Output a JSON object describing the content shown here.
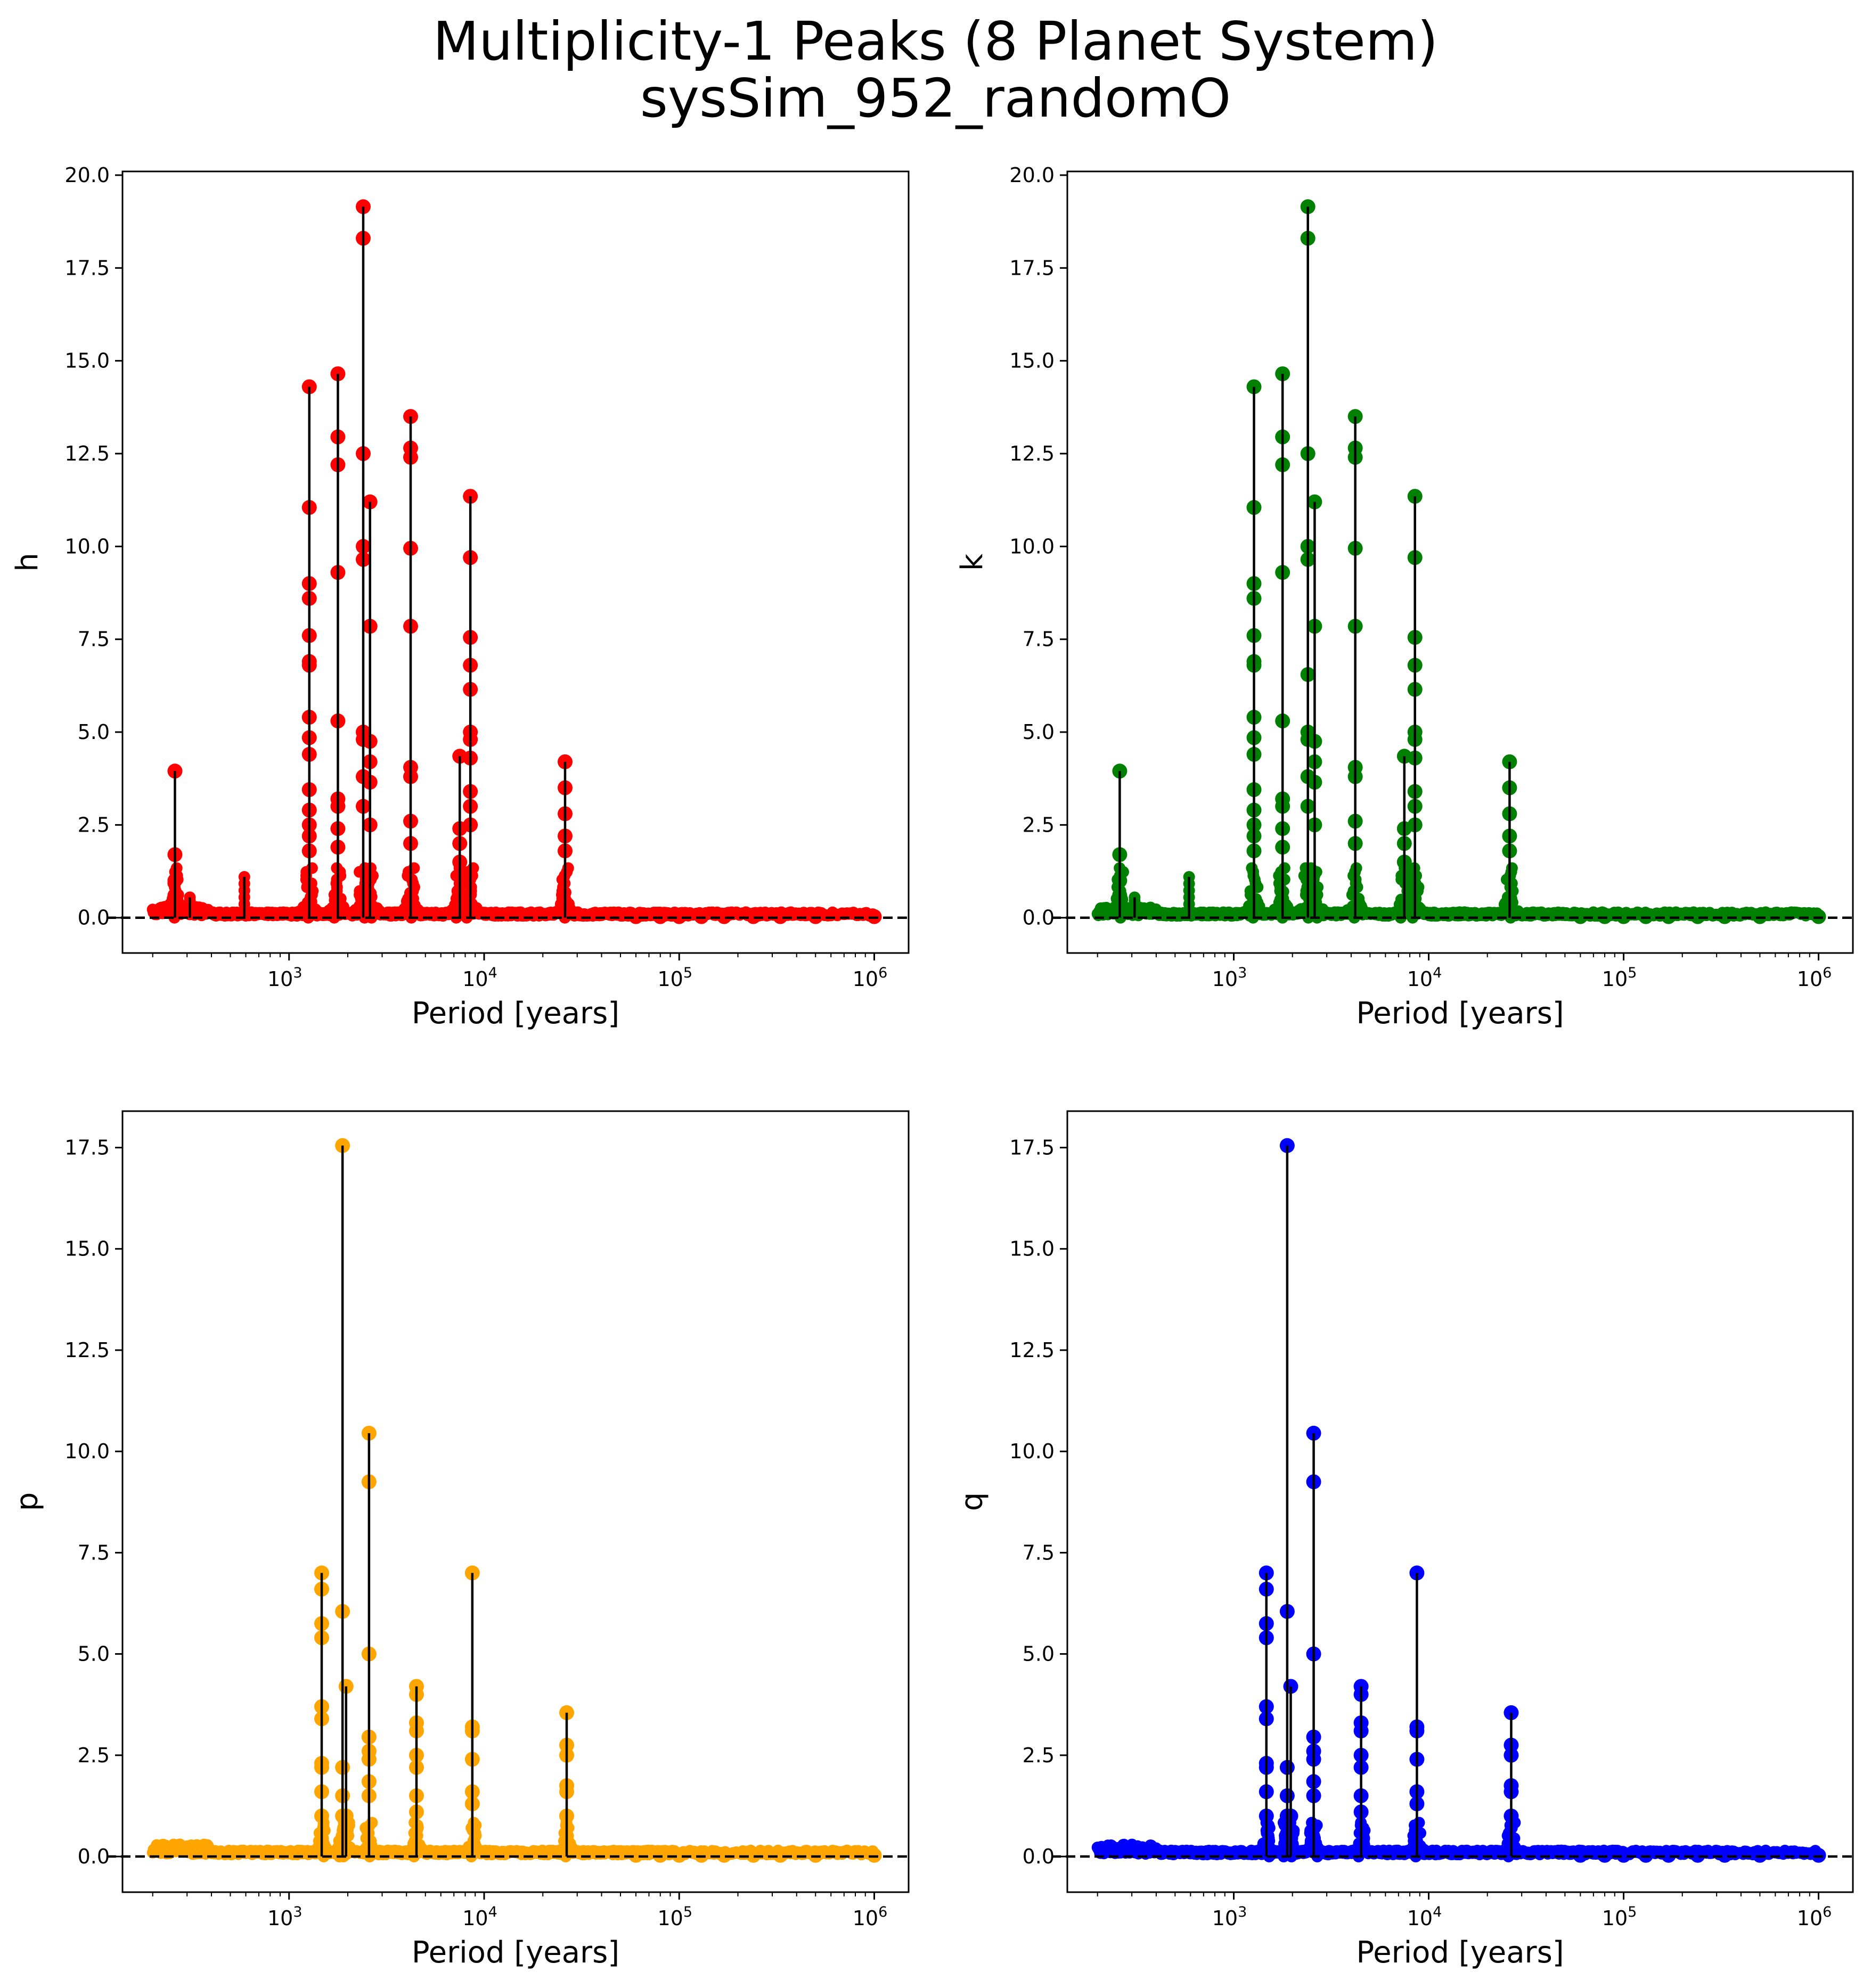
{
  "figure": {
    "title_line1": "Multiplicity-1 Peaks (8 Planet System)",
    "title_line2": "sysSim_952_randomO"
  },
  "chart_data": [
    {
      "type": "scatter",
      "name": "panel-h",
      "xlabel": "Period [years]",
      "ylabel": "h",
      "xscale": "log",
      "xlim": [
        140,
        1500000
      ],
      "ylim": [
        -0.95,
        20.1
      ],
      "yticks": [
        "0.0",
        "2.5",
        "5.0",
        "7.5",
        "10.0",
        "12.5",
        "15.0",
        "17.5",
        "20.0"
      ],
      "xticks": [
        {
          "base": "10",
          "exp": "3"
        },
        {
          "base": "10",
          "exp": "4"
        },
        {
          "base": "10",
          "exp": "5"
        },
        {
          "base": "10",
          "exp": "6"
        }
      ],
      "marker_color": "#ff0000",
      "peaks": [
        {
          "x": 260,
          "y": 3.95,
          "dots": [
            1.7,
            1.0,
            0.6
          ]
        },
        {
          "x": 1270,
          "y": 14.3,
          "dots": [
            11.05,
            9.0,
            8.6,
            7.6,
            6.9,
            6.8,
            5.4,
            4.85,
            4.4,
            3.45,
            2.9,
            2.5,
            2.2,
            1.8
          ]
        },
        {
          "x": 1780,
          "y": 14.65,
          "dots": [
            12.95,
            12.2,
            9.3,
            5.3,
            3.2,
            3.0,
            2.4,
            1.9
          ]
        },
        {
          "x": 2400,
          "y": 19.15,
          "dots": [
            18.3,
            12.5,
            10.0,
            9.65,
            5.0,
            4.8,
            3.8,
            3.0
          ]
        },
        {
          "x": 2600,
          "y": 11.2,
          "dots": [
            7.85,
            4.75,
            4.2,
            3.65,
            2.5
          ]
        },
        {
          "x": 4200,
          "y": 13.5,
          "dots": [
            12.65,
            12.4,
            9.95,
            7.85,
            4.05,
            3.8,
            2.6,
            2.0
          ]
        },
        {
          "x": 7500,
          "y": 4.35,
          "dots": [
            2.4,
            2.0,
            1.5
          ]
        },
        {
          "x": 8500,
          "y": 11.35,
          "dots": [
            9.7,
            7.55,
            6.8,
            6.15,
            5.0,
            4.8,
            4.3,
            3.4,
            3.0,
            2.5
          ]
        },
        {
          "x": 26000,
          "y": 4.2,
          "dots": [
            3.5,
            2.8,
            2.2,
            1.8
          ]
        }
      ],
      "small_peaks": [
        {
          "x": 310,
          "y": 0.55
        },
        {
          "x": 590,
          "y": 1.1
        }
      ],
      "baseline_cutoff": 0.8
    },
    {
      "type": "scatter",
      "name": "panel-k",
      "xlabel": "Period [years]",
      "ylabel": "k",
      "xscale": "log",
      "xlim": [
        140,
        1500000
      ],
      "ylim": [
        -0.95,
        20.1
      ],
      "yticks": [
        "0.0",
        "2.5",
        "5.0",
        "7.5",
        "10.0",
        "12.5",
        "15.0",
        "17.5",
        "20.0"
      ],
      "xticks": [
        {
          "base": "10",
          "exp": "3"
        },
        {
          "base": "10",
          "exp": "4"
        },
        {
          "base": "10",
          "exp": "5"
        },
        {
          "base": "10",
          "exp": "6"
        }
      ],
      "marker_color": "#008000",
      "peaks": [
        {
          "x": 260,
          "y": 3.95,
          "dots": [
            1.7,
            1.0,
            0.6
          ]
        },
        {
          "x": 1270,
          "y": 14.3,
          "dots": [
            11.05,
            9.0,
            8.6,
            7.6,
            6.9,
            6.8,
            5.4,
            4.85,
            4.4,
            3.45,
            2.9,
            2.5,
            2.2,
            1.8
          ]
        },
        {
          "x": 1780,
          "y": 14.65,
          "dots": [
            12.95,
            12.2,
            9.3,
            5.3,
            3.2,
            3.0,
            2.4,
            1.9
          ]
        },
        {
          "x": 2400,
          "y": 19.15,
          "dots": [
            18.3,
            12.5,
            10.0,
            9.65,
            6.55,
            5.0,
            4.8,
            3.8,
            3.0
          ]
        },
        {
          "x": 2600,
          "y": 11.2,
          "dots": [
            7.85,
            4.75,
            4.2,
            3.65,
            2.5
          ]
        },
        {
          "x": 4200,
          "y": 13.5,
          "dots": [
            12.65,
            12.4,
            9.95,
            7.85,
            4.05,
            3.8,
            2.6,
            2.0
          ]
        },
        {
          "x": 7500,
          "y": 4.35,
          "dots": [
            2.4,
            2.0,
            1.5
          ]
        },
        {
          "x": 8500,
          "y": 11.35,
          "dots": [
            9.7,
            7.55,
            6.8,
            6.15,
            5.0,
            4.8,
            4.3,
            3.4,
            3.0,
            2.5
          ]
        },
        {
          "x": 26000,
          "y": 4.2,
          "dots": [
            3.5,
            2.8,
            2.2,
            1.8
          ]
        }
      ],
      "small_peaks": [
        {
          "x": 310,
          "y": 0.55
        },
        {
          "x": 590,
          "y": 1.1
        }
      ],
      "baseline_cutoff": 0.8
    },
    {
      "type": "scatter",
      "name": "panel-p",
      "xlabel": "Period [years]",
      "ylabel": "p",
      "xscale": "log",
      "xlim": [
        140,
        1500000
      ],
      "ylim": [
        -0.88,
        18.4
      ],
      "yticks": [
        "0.0",
        "2.5",
        "5.0",
        "7.5",
        "10.0",
        "12.5",
        "15.0",
        "17.5"
      ],
      "xticks": [
        {
          "base": "10",
          "exp": "3"
        },
        {
          "base": "10",
          "exp": "4"
        },
        {
          "base": "10",
          "exp": "5"
        },
        {
          "base": "10",
          "exp": "6"
        }
      ],
      "marker_color": "#ffa500",
      "peaks": [
        {
          "x": 1470,
          "y": 7.0,
          "dots": [
            6.6,
            5.75,
            5.4,
            3.7,
            3.4,
            2.3,
            2.2,
            1.6,
            1.0
          ]
        },
        {
          "x": 1880,
          "y": 17.55,
          "dots": [
            6.05,
            2.2,
            1.5,
            1.0
          ]
        },
        {
          "x": 1960,
          "y": 4.2,
          "dots": [
            1.0
          ]
        },
        {
          "x": 2570,
          "y": 10.45,
          "dots": [
            9.25,
            5.0,
            2.95,
            2.6,
            2.4,
            1.85,
            1.5
          ]
        },
        {
          "x": 4500,
          "y": 4.2,
          "dots": [
            4.0,
            3.3,
            3.1,
            2.5,
            2.2,
            1.5,
            1.1
          ]
        },
        {
          "x": 8700,
          "y": 7.0,
          "dots": [
            3.2,
            3.1,
            2.4,
            1.6,
            1.3
          ]
        },
        {
          "x": 26500,
          "y": 3.55,
          "dots": [
            2.75,
            2.5,
            1.75,
            1.6,
            1.0
          ]
        }
      ],
      "small_peaks": [],
      "baseline_cutoff": 0.5
    },
    {
      "type": "scatter",
      "name": "panel-q",
      "xlabel": "Period [years]",
      "ylabel": "q",
      "xscale": "log",
      "xlim": [
        140,
        1500000
      ],
      "ylim": [
        -0.88,
        18.4
      ],
      "yticks": [
        "0.0",
        "2.5",
        "5.0",
        "7.5",
        "10.0",
        "12.5",
        "15.0",
        "17.5"
      ],
      "xticks": [
        {
          "base": "10",
          "exp": "3"
        },
        {
          "base": "10",
          "exp": "4"
        },
        {
          "base": "10",
          "exp": "5"
        },
        {
          "base": "10",
          "exp": "6"
        }
      ],
      "marker_color": "#0000ff",
      "peaks": [
        {
          "x": 1470,
          "y": 7.0,
          "dots": [
            6.6,
            5.75,
            5.4,
            3.7,
            3.4,
            2.3,
            2.2,
            1.6,
            1.0
          ]
        },
        {
          "x": 1880,
          "y": 17.55,
          "dots": [
            6.05,
            2.2,
            1.5,
            1.0
          ]
        },
        {
          "x": 1960,
          "y": 4.2,
          "dots": [
            1.0
          ]
        },
        {
          "x": 2570,
          "y": 10.45,
          "dots": [
            9.25,
            5.0,
            2.95,
            2.6,
            2.4,
            1.85,
            1.5
          ]
        },
        {
          "x": 4500,
          "y": 4.2,
          "dots": [
            4.0,
            3.3,
            3.1,
            2.5,
            2.2,
            1.5,
            1.1
          ]
        },
        {
          "x": 8700,
          "y": 7.0,
          "dots": [
            3.2,
            3.1,
            2.4,
            1.6,
            1.3
          ]
        },
        {
          "x": 26500,
          "y": 3.55,
          "dots": [
            2.75,
            2.5,
            1.75,
            1.6,
            1.0
          ]
        }
      ],
      "small_peaks": [],
      "baseline_cutoff": 0.5
    }
  ]
}
